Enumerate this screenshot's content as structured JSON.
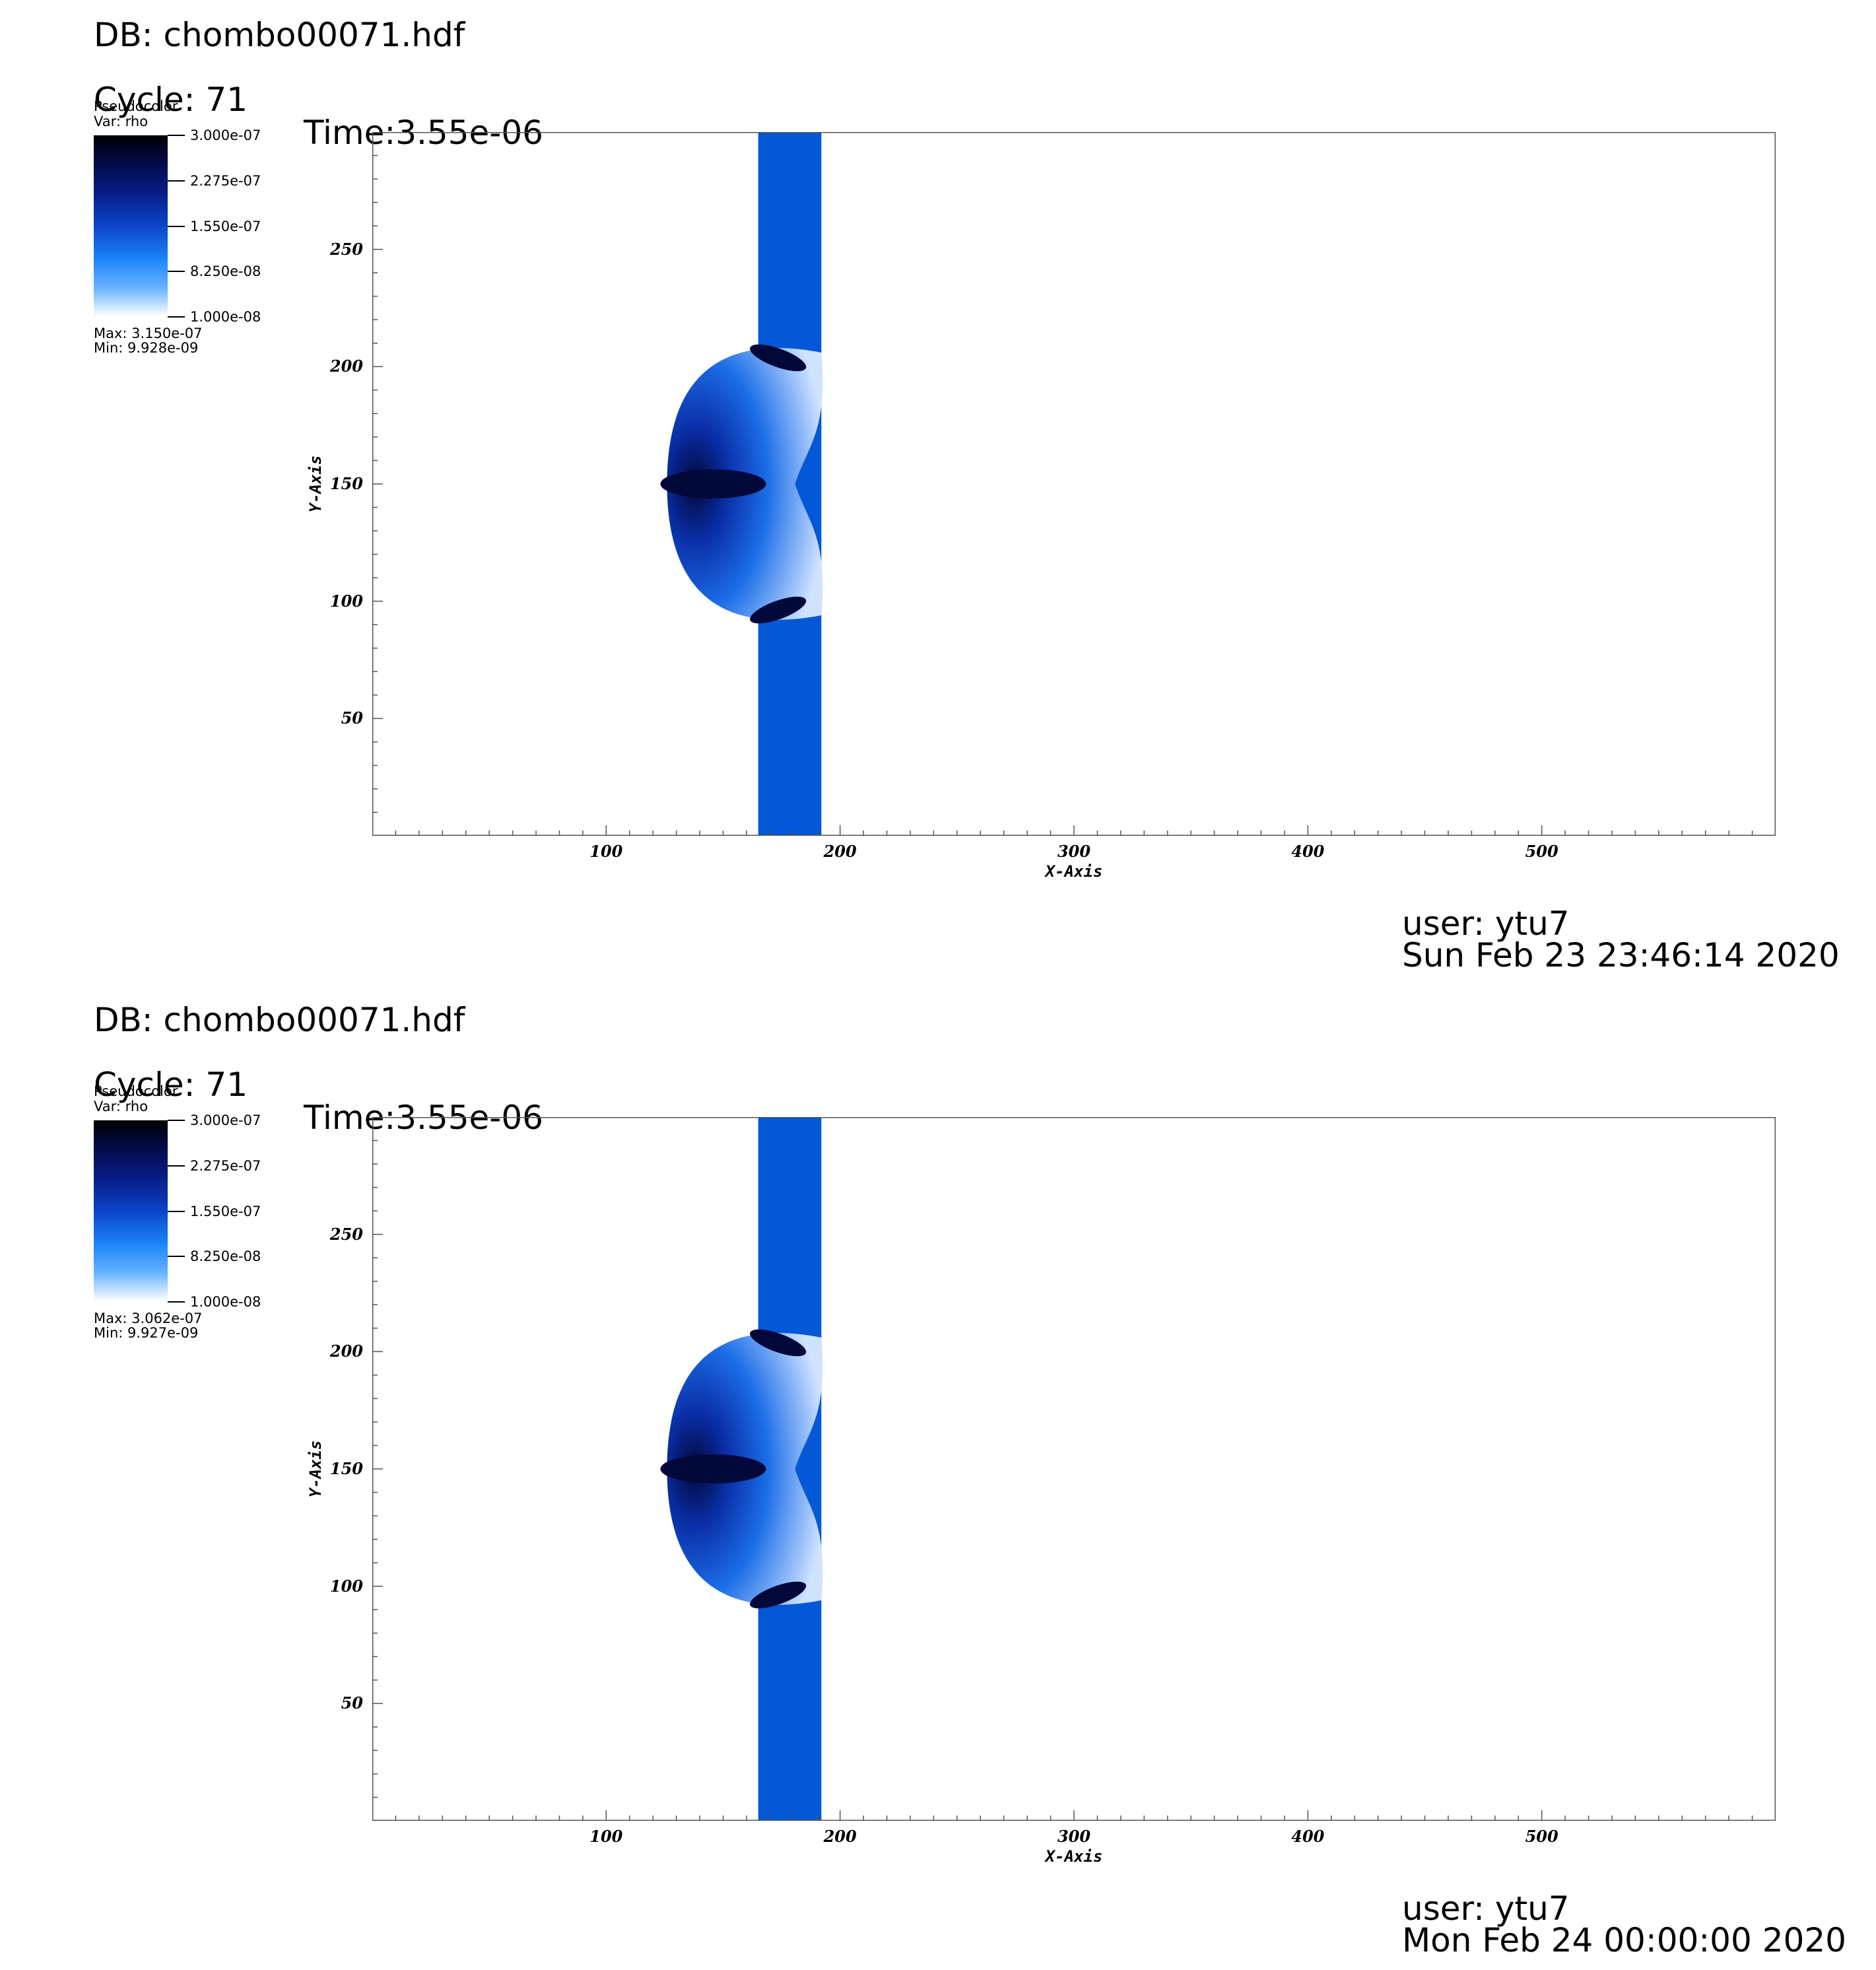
{
  "panels": [
    {
      "db_label": "DB: chombo00071.hdf",
      "cycle_label": "Cycle: 71",
      "time_label": "Time:3.55e-06",
      "legend": {
        "title": "Pseudocolor",
        "var": "Var: rho",
        "ticks": [
          "3.000e-07",
          "2.275e-07",
          "1.550e-07",
          "8.250e-08",
          "1.000e-08"
        ],
        "max": "Max:  3.150e-07",
        "min": "Min:  9.928e-09"
      },
      "user": "user: ytu7",
      "date": "Sun Feb 23 23:46:14 2020"
    },
    {
      "db_label": "DB: chombo00071.hdf",
      "cycle_label": "Cycle: 71",
      "time_label": "Time:3.55e-06",
      "legend": {
        "title": "Pseudocolor",
        "var": "Var: rho",
        "ticks": [
          "3.000e-07",
          "2.275e-07",
          "1.550e-07",
          "8.250e-08",
          "1.000e-08"
        ],
        "max": "Max:  3.062e-07",
        "min": "Min:  9.927e-09"
      },
      "user": "user: ytu7",
      "date": "Mon Feb 24 00:00:00 2020"
    }
  ],
  "colors": {
    "band": "#0457d6",
    "dense": "#02083a",
    "mid": "#1b6ee8",
    "light": "#cfe3ff"
  },
  "chart_data": [
    {
      "type": "heatmap",
      "variable": "rho",
      "xlabel": "X-Axis",
      "ylabel": "Y-Axis",
      "xlim": [
        0,
        600
      ],
      "ylim": [
        0,
        300
      ],
      "x_ticks": [
        100,
        200,
        300,
        400,
        500
      ],
      "y_ticks": [
        50,
        100,
        150,
        200,
        250
      ],
      "x_tick_labels": [
        "100",
        "200",
        "300",
        "400",
        "500"
      ],
      "y_tick_labels": [
        "50",
        "100",
        "150",
        "200",
        "250"
      ],
      "color_range": [
        1e-08,
        3e-07
      ],
      "band_x_range": [
        165,
        192
      ],
      "shock_bulge": {
        "x_left": 126,
        "y_range": [
          94,
          206
        ],
        "center_y": 150
      }
    },
    {
      "type": "heatmap",
      "variable": "rho",
      "xlabel": "X-Axis",
      "ylabel": "Y-Axis",
      "xlim": [
        0,
        600
      ],
      "ylim": [
        0,
        300
      ],
      "x_ticks": [
        100,
        200,
        300,
        400,
        500
      ],
      "y_ticks": [
        50,
        100,
        150,
        200,
        250
      ],
      "x_tick_labels": [
        "100",
        "200",
        "300",
        "400",
        "500"
      ],
      "y_tick_labels": [
        "50",
        "100",
        "150",
        "200",
        "250"
      ],
      "color_range": [
        1e-08,
        3e-07
      ],
      "band_x_range": [
        165,
        192
      ],
      "shock_bulge": {
        "x_left": 126,
        "y_range": [
          94,
          206
        ],
        "center_y": 150
      }
    }
  ]
}
